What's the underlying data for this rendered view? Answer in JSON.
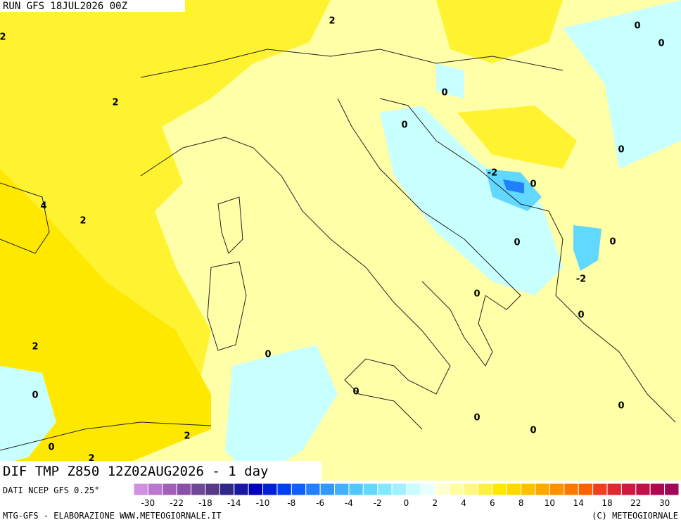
{
  "header": {
    "run": "RUN GFS 18JUL2026 00Z"
  },
  "map": {
    "contour_labels": [
      "2",
      "0",
      "0",
      "2",
      "0",
      "2",
      "0",
      "0",
      "-2",
      "0",
      "4",
      "2",
      "0",
      "0",
      "-2",
      "0",
      "0",
      "2",
      "0",
      "0",
      "0",
      "0",
      "0",
      "0",
      "2",
      "0",
      "2"
    ]
  },
  "footer": {
    "title": "DIF TMP Z850 12Z02AUG2026 - 1 day",
    "source": "DATI NCEP GFS 0.25°",
    "credit_left": "MTG-GFS - ELABORAZIONE WWW.METEOGIORNALE.IT",
    "credit_right": "(C) METEOGIORNALE"
  },
  "colorbar": {
    "colors": [
      "#d090e0",
      "#b878d0",
      "#a060b8",
      "#8850a8",
      "#704898",
      "#583888",
      "#302888",
      "#1818a0",
      "#0000c0",
      "#0020d8",
      "#0040f0",
      "#1060ff",
      "#2080ff",
      "#3098ff",
      "#40b0ff",
      "#50c8ff",
      "#60d8ff",
      "#80e8ff",
      "#a0f0ff",
      "#c8fcff",
      "#e8ffff",
      "#ffffd0",
      "#ffffa0",
      "#fff880",
      "#fff040",
      "#ffe800",
      "#ffd800",
      "#ffc000",
      "#ffa800",
      "#ff9000",
      "#ff7800",
      "#ff6000",
      "#f04020",
      "#e02830",
      "#d01840",
      "#c01048",
      "#b00850",
      "#a00858"
    ],
    "tick_labels": [
      "-30",
      "-22",
      "-18",
      "-14",
      "-10",
      "-8",
      "-6",
      "-4",
      "-2",
      "0",
      "2",
      "4",
      "6",
      "8",
      "10",
      "14",
      "18",
      "22",
      "30"
    ]
  }
}
